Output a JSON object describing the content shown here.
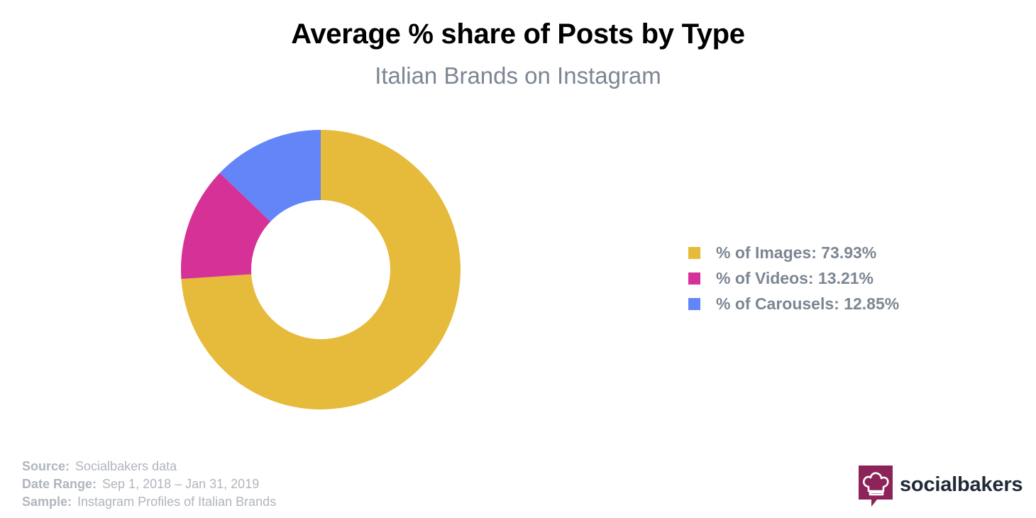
{
  "header": {
    "title": "Average % share of Posts by Type",
    "subtitle": "Italian Brands on Instagram"
  },
  "chart_data": {
    "type": "pie",
    "style": "donut",
    "title": "Average % share of Posts by Type",
    "subtitle": "Italian Brands on Instagram",
    "legend_position": "right",
    "series": [
      {
        "name": "% of Images",
        "value": 73.93,
        "color": "#e6bb3b",
        "label": "% of Images: 73.93%"
      },
      {
        "name": "% of Videos",
        "value": 13.21,
        "color": "#d63196",
        "label": "% of Videos: 13.21%"
      },
      {
        "name": "% of Carousels",
        "value": 12.85,
        "color": "#6485f8",
        "label": "% of Carousels: 12.85%"
      }
    ]
  },
  "footer": {
    "source_label": "Source:",
    "source_value": "Socialbakers data",
    "date_label": "Date Range:",
    "date_value": "Sep 1, 2018  – Jan 31, 2019",
    "sample_label": "Sample:",
    "sample_value": "Instagram Profiles of Italian Brands"
  },
  "brand": {
    "name": "socialbakers",
    "icon": "chef-hat-icon",
    "color": "#8c2459"
  }
}
